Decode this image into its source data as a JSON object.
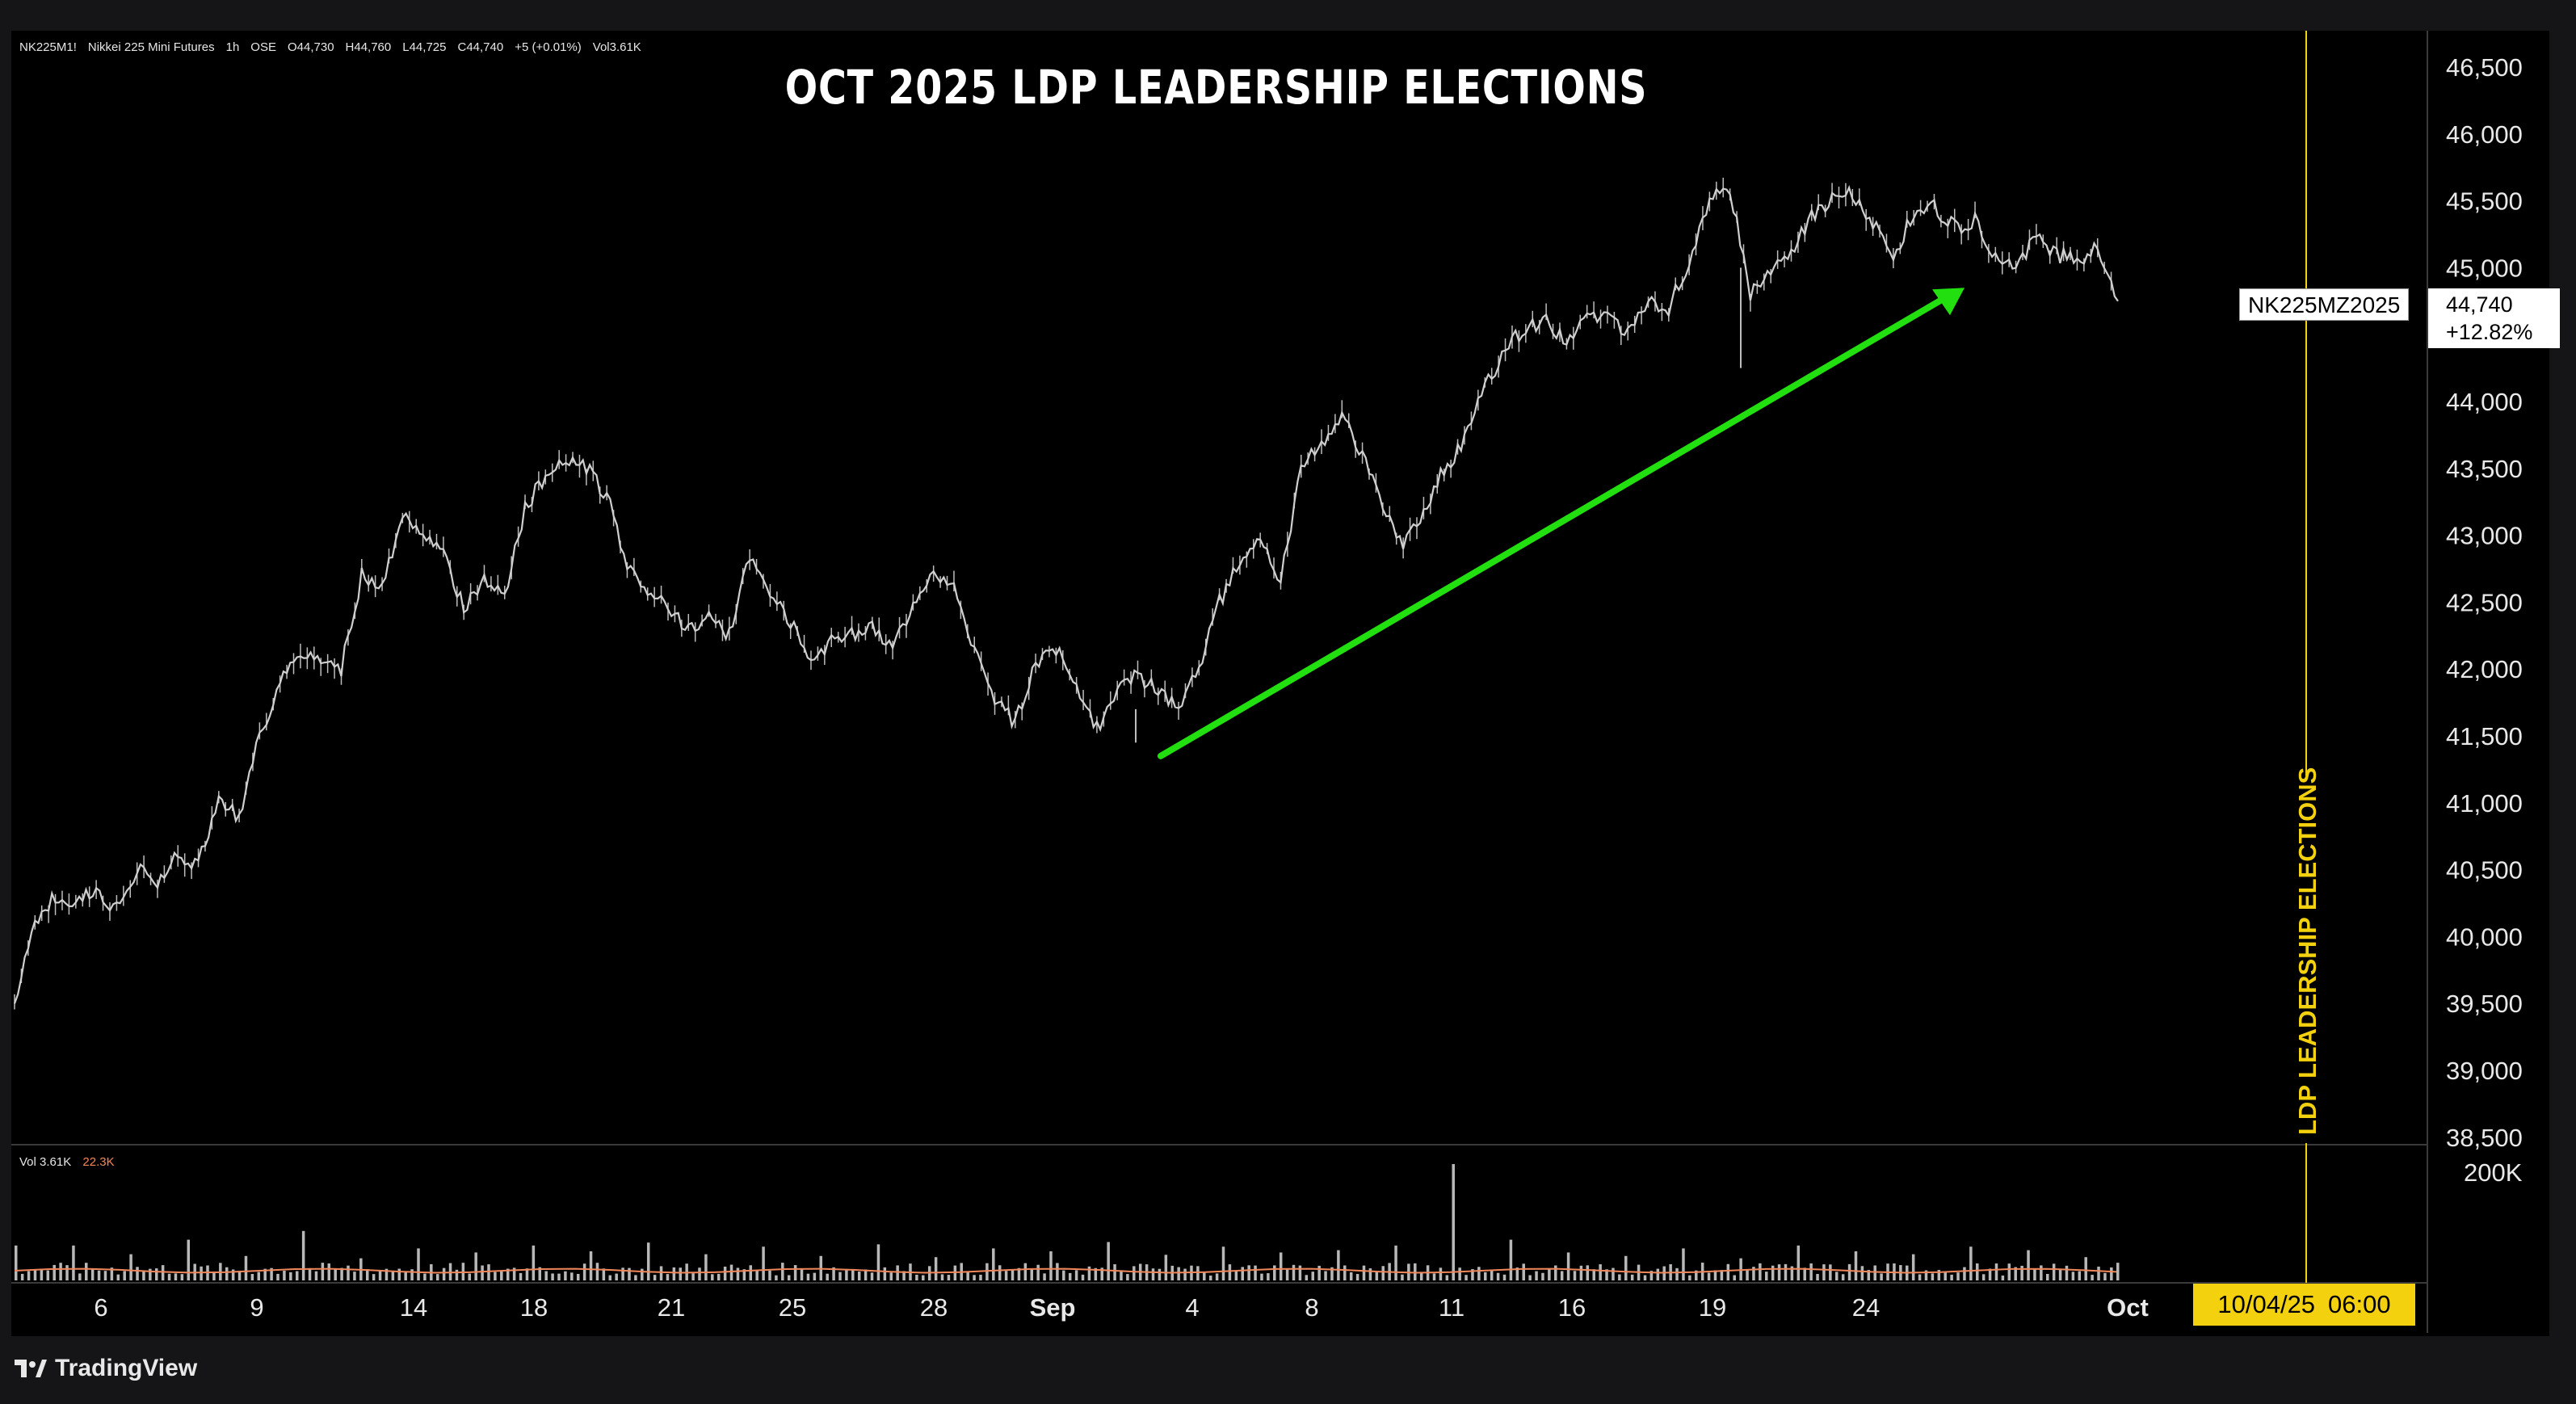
{
  "header": {
    "symbol": "NK225M1!",
    "name": "Nikkei 225 Mini Futures",
    "interval": "1h",
    "exchange": "OSE",
    "open": "O44,730",
    "high": "H44,760",
    "low": "L44,725",
    "close": "C44,740",
    "change": "+5 (+0.01%)",
    "volume": "Vol3.61K"
  },
  "volume_legend": {
    "label": "Vol",
    "value": "3.61K",
    "ma": "22.3K"
  },
  "price_tag": {
    "symbol": "NK225MZ2025",
    "price": "44,740",
    "change_pct": "+12.82%"
  },
  "cursor_date": {
    "date": "10/04/25",
    "time": "06:00"
  },
  "brand": "TradingView",
  "colors": {
    "background": "#000000",
    "candles": "#c8c8c8",
    "arrow": "#22e010",
    "event_line": "#f3d10f",
    "volume_ma": "#f0875a"
  },
  "chart_data": {
    "type": "line",
    "title": "OCT 2025 LDP LEADERSHIP ELECTIONS",
    "y_axis": {
      "position": "right",
      "ticks": [
        38500,
        39000,
        39500,
        40000,
        40500,
        41000,
        41500,
        42000,
        42500,
        43000,
        43500,
        44000,
        44500,
        45000,
        45500,
        46000,
        46500
      ],
      "tick_labels": [
        "38,500",
        "39,000",
        "39,500",
        "40,000",
        "40,500",
        "41,000",
        "41,500",
        "42,000",
        "42,500",
        "43,000",
        "43,500",
        "44,000",
        "",
        "45,000",
        "45,500",
        "46,000",
        "46,500"
      ],
      "ylim": [
        38500,
        46700
      ]
    },
    "x_axis": {
      "tick_labels": [
        "6",
        "9",
        "14",
        "18",
        "21",
        "25",
        "28",
        "Sep",
        "4",
        "8",
        "11",
        "16",
        "19",
        "24",
        "Oct"
      ]
    },
    "series": [
      {
        "values": [
          39500,
          40100,
          40300,
          40250,
          40350,
          40200,
          40500,
          40400,
          40600,
          40550,
          41050,
          40900,
          41500,
          41900,
          42100,
          42050,
          42000,
          42700,
          42600,
          43150,
          43050,
          42850,
          42450,
          42650,
          42550,
          43200,
          43450,
          43600,
          43500,
          43300,
          42800,
          42600,
          42450,
          42300,
          42400,
          42250,
          42850,
          42600,
          42350,
          42100,
          42200,
          42250,
          42300,
          42150,
          42500,
          42750,
          42600,
          42150,
          41750,
          41600,
          42050,
          42150,
          41900,
          41550,
          41850,
          41950,
          41850,
          41700,
          42000,
          42500,
          42800,
          43000,
          42650,
          43500,
          43700,
          43900,
          43600,
          43200,
          42900,
          43200,
          43500,
          43700,
          44100,
          44400,
          44550,
          44600,
          44450,
          44600,
          44650,
          44500,
          44750,
          44700,
          45050,
          45500,
          45600,
          44800,
          44950,
          45100,
          45400,
          45500,
          45550,
          45350,
          45100,
          45400,
          45450,
          45300,
          45350,
          45100,
          45000,
          45250,
          45100,
          45050,
          45150,
          44750
        ]
      }
    ],
    "annotations": [
      {
        "type": "arrow",
        "color": "#22e010",
        "from": {
          "x": "Sep 2",
          "y": 41350
        },
        "to": {
          "x": "Sep 29",
          "y": 44800
        }
      },
      {
        "type": "vertical_line",
        "label": "LDP LEADERSHIP ELECTIONS",
        "x": "Oct 4"
      }
    ],
    "volume": {
      "tick_labels": [
        "200K"
      ],
      "spike_values_k": [
        60,
        45,
        70,
        42,
        85,
        38,
        55,
        48,
        60,
        50,
        65,
        45,
        58,
        42,
        62,
        40,
        55,
        50,
        66,
        44,
        58,
        48,
        52,
        60,
        200,
        70,
        48,
        42,
        55,
        38,
        60,
        50,
        45,
        58,
        52,
        40
      ]
    }
  }
}
